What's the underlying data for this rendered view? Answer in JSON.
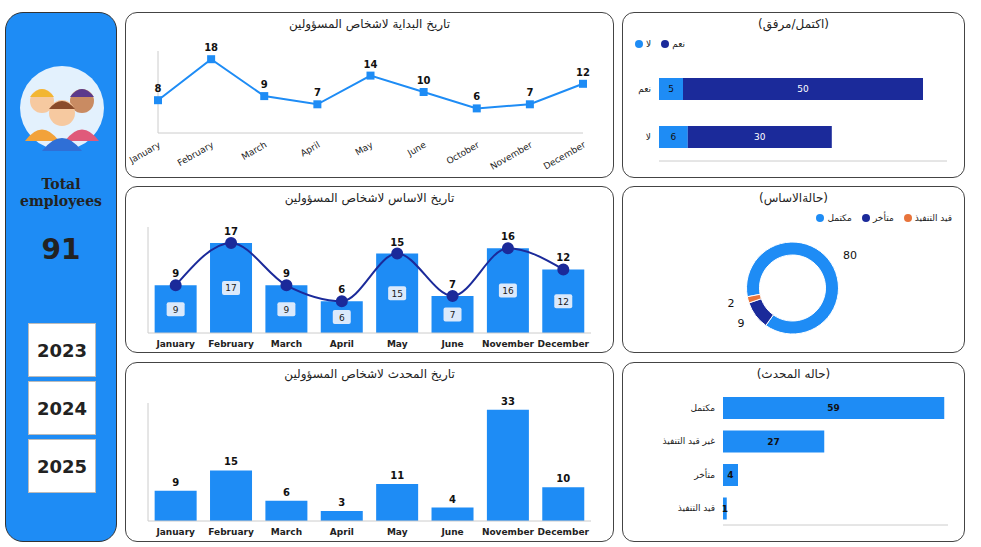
{
  "sidebar": {
    "title": "Total employees",
    "value": 91,
    "years": [
      2023,
      2024,
      2025
    ]
  },
  "chart_data": [
    {
      "type": "line",
      "title": "تاريخ البداية لاشخاص المسؤولين",
      "categories": [
        "January",
        "February",
        "March",
        "April",
        "May",
        "June",
        "October",
        "November",
        "December"
      ],
      "values": [
        8,
        18,
        9,
        7,
        14,
        10,
        6,
        7,
        12
      ],
      "color": "#1e8cf5",
      "ylim": [
        0,
        20
      ],
      "marker": "square",
      "data_labels": true,
      "tick_labels": "x"
    },
    {
      "type": "bar",
      "title": "تاريخ الاساس لاشخاص المسؤولين",
      "categories": [
        "January",
        "February",
        "March",
        "April",
        "May",
        "June",
        "November",
        "December"
      ],
      "series": [
        {
          "type": "bar",
          "color": "#1e8cf5",
          "values": [
            9,
            17,
            9,
            6,
            15,
            7,
            16,
            12
          ]
        },
        {
          "type": "line",
          "color": "#1b2a9a",
          "marker": "circle",
          "values": [
            9,
            17,
            9,
            6,
            15,
            7,
            16,
            12
          ]
        }
      ],
      "ylim": [
        0,
        20
      ],
      "data_labels": true,
      "tick_labels": "x"
    },
    {
      "type": "bar",
      "title": "تاريخ المحدث لاشخاص المسؤولين",
      "categories": [
        "January",
        "February",
        "March",
        "April",
        "May",
        "June",
        "November",
        "December"
      ],
      "values": [
        9,
        15,
        6,
        3,
        11,
        4,
        33,
        10
      ],
      "color": "#1e8cf5",
      "ylim": [
        0,
        35
      ],
      "data_labels": true,
      "tick_labels": "x"
    },
    {
      "type": "bar",
      "title": "(اكتمل/مرفق)",
      "orientation": "horizontal",
      "stacked": true,
      "categories": [
        "نعم",
        "لا"
      ],
      "series": [
        {
          "name": "لا",
          "color": "#1e8cf5",
          "values": [
            5,
            6
          ]
        },
        {
          "name": "نعم",
          "color": "#1b2a9a",
          "values": [
            50,
            30
          ]
        }
      ],
      "xlim": [
        0,
        60
      ],
      "legend": "top-left",
      "data_labels": true,
      "tick_labels": "y"
    },
    {
      "type": "pie",
      "title": "(حالةالاساس)",
      "categories": [
        "مكتمل",
        "متأخر",
        "قيد التنفيذ"
      ],
      "values": [
        80,
        9,
        2
      ],
      "colors": [
        "#1e8cf5",
        "#1b2a9a",
        "#e8743b"
      ],
      "legend": "top-right",
      "data_labels": true
    },
    {
      "type": "bar",
      "title": "(حاله المحدث)",
      "orientation": "horizontal",
      "categories": [
        "مكتمل",
        "غير قيد التنفيذ",
        "متأخر",
        "قيد التنفيذ"
      ],
      "values": [
        59,
        27,
        4,
        1
      ],
      "color": "#1e8cf5",
      "xlim": [
        0,
        60
      ],
      "data_labels": true,
      "tick_labels": "y"
    }
  ]
}
